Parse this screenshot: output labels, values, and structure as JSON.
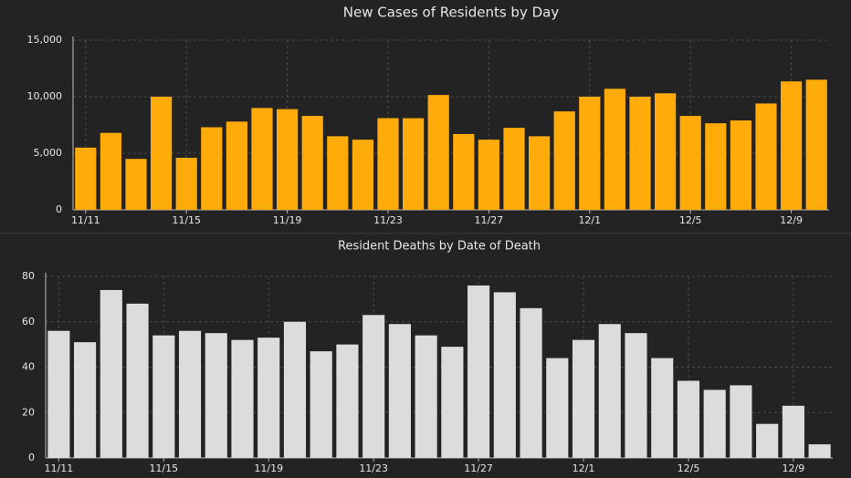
{
  "chart_data": [
    {
      "type": "bar",
      "title": "New Cases of Residents by Day",
      "categories": [
        "11/11",
        null,
        null,
        null,
        "11/15",
        null,
        null,
        null,
        "11/19",
        null,
        null,
        null,
        "11/23",
        null,
        null,
        null,
        "11/27",
        null,
        null,
        null,
        "12/1",
        null,
        null,
        null,
        "12/5",
        null,
        null,
        null,
        "12/9",
        null
      ],
      "values": [
        5500,
        6800,
        4500,
        10000,
        4600,
        7300,
        7800,
        9000,
        8900,
        8300,
        6500,
        6200,
        8100,
        8100,
        10150,
        6700,
        6200,
        7250,
        6500,
        8700,
        10000,
        10700,
        10000,
        10300,
        8300,
        7650,
        7900,
        9400,
        11350,
        11500
      ],
      "color": "#ffac0a",
      "ylim": [
        0,
        15000
      ],
      "yticks": [
        0,
        {
          "value": 5000,
          "label": "5,000"
        },
        {
          "value": 10000,
          "label": "10,000"
        },
        {
          "value": 15000,
          "label": "15,000"
        }
      ],
      "grid": true
    },
    {
      "type": "bar",
      "title": "Resident Deaths by Date of Death",
      "categories": [
        "11/11",
        null,
        null,
        null,
        "11/15",
        null,
        null,
        null,
        "11/19",
        null,
        null,
        null,
        "11/23",
        null,
        null,
        null,
        "11/27",
        null,
        null,
        null,
        "12/1",
        null,
        null,
        null,
        "12/5",
        null,
        null,
        null,
        "12/9",
        null
      ],
      "values": [
        56,
        51,
        74,
        68,
        54,
        56,
        55,
        52,
        53,
        60,
        47,
        50,
        63,
        59,
        54,
        49,
        76,
        73,
        66,
        44,
        52,
        59,
        55,
        44,
        34,
        30,
        32,
        15,
        23,
        6
      ],
      "color": "#dcdcdc",
      "ylim": [
        0,
        80
      ],
      "yticks": [
        0,
        20,
        40,
        60,
        80
      ],
      "grid": true
    }
  ]
}
